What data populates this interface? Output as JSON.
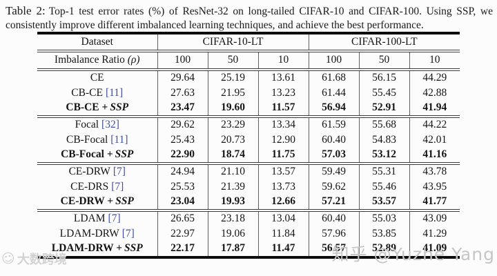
{
  "caption": {
    "label": "Table 2:",
    "text": "Top-1 test error rates (%) of ResNet-32 on long-tailed CIFAR-10 and CIFAR-100. Using SSP, we consistently improve different imbalanced learning techniques, and achieve the best performance."
  },
  "table": {
    "header": {
      "dataset_label": "Dataset",
      "groups": [
        "CIFAR-10-LT",
        "CIFAR-100-LT"
      ],
      "imbalance_label": "Imbalance Ratio",
      "imbalance_symbol": "(ρ)",
      "ratios": [
        "100",
        "50",
        "10",
        "100",
        "50",
        "10"
      ]
    },
    "blocks": [
      {
        "rows": [
          {
            "method": "CE",
            "cite": "",
            "ssp": "",
            "bold": false,
            "values": [
              "29.64",
              "25.19",
              "13.61",
              "61.68",
              "56.15",
              "44.29"
            ]
          },
          {
            "method": "CB-CE",
            "cite": "[11]",
            "ssp": "",
            "bold": false,
            "values": [
              "27.63",
              "21.95",
              "13.23",
              "61.44",
              "55.45",
              "42.88"
            ]
          },
          {
            "method": "CB-CE +",
            "cite": "",
            "ssp": "SSP",
            "bold": true,
            "values": [
              "23.47",
              "19.60",
              "11.57",
              "56.94",
              "52.91",
              "41.94"
            ]
          }
        ]
      },
      {
        "rows": [
          {
            "method": "Focal",
            "cite": "[32]",
            "ssp": "",
            "bold": false,
            "values": [
              "29.62",
              "23.29",
              "13.34",
              "61.59",
              "55.68",
              "44.22"
            ]
          },
          {
            "method": "CB-Focal",
            "cite": "[11]",
            "ssp": "",
            "bold": false,
            "values": [
              "25.43",
              "20.73",
              "12.90",
              "60.40",
              "54.83",
              "42.01"
            ]
          },
          {
            "method": "CB-Focal +",
            "cite": "",
            "ssp": "SSP",
            "bold": true,
            "values": [
              "22.90",
              "18.74",
              "11.75",
              "57.03",
              "53.12",
              "41.16"
            ]
          }
        ]
      },
      {
        "rows": [
          {
            "method": "CE-DRW",
            "cite": "[7]",
            "ssp": "",
            "bold": false,
            "values": [
              "24.94",
              "21.10",
              "13.57",
              "59.49",
              "55.31",
              "43.78"
            ]
          },
          {
            "method": "CE-DRS",
            "cite": "[7]",
            "ssp": "",
            "bold": false,
            "values": [
              "25.53",
              "21.39",
              "13.73",
              "59.62",
              "55.46",
              "43.95"
            ]
          },
          {
            "method": "CE-DRW +",
            "cite": "",
            "ssp": "SSP",
            "bold": true,
            "values": [
              "23.04",
              "19.93",
              "12.66",
              "57.21",
              "53.57",
              "41.77"
            ]
          }
        ]
      },
      {
        "rows": [
          {
            "method": "LDAM",
            "cite": "[7]",
            "ssp": "",
            "bold": false,
            "values": [
              "26.65",
              "23.18",
              "13.04",
              "60.40",
              "55.03",
              "43.09"
            ]
          },
          {
            "method": "LDAM-DRW",
            "cite": "[7]",
            "ssp": "",
            "bold": false,
            "values": [
              "22.97",
              "19.06",
              "11.84",
              "57.96",
              "53.85",
              "41.29"
            ]
          },
          {
            "method": "LDAM-DRW +",
            "cite": "",
            "ssp": "SSP",
            "bold": true,
            "values": [
              "22.17",
              "17.87",
              "11.47",
              "56.57",
              "52.89",
              "41.09"
            ]
          }
        ]
      }
    ]
  },
  "watermarks": {
    "zhihu": "知乎 @Yuzhe Yang",
    "corner": "大数跨境",
    "corner_icon": "smiley-logo-icon"
  },
  "colors": {
    "citation_blue": "#3e4fa3",
    "watermark_gray": "#c6c6c6",
    "corner_watermark_gray": "#d2d2d2",
    "rule_black": "#0b0b0b"
  }
}
